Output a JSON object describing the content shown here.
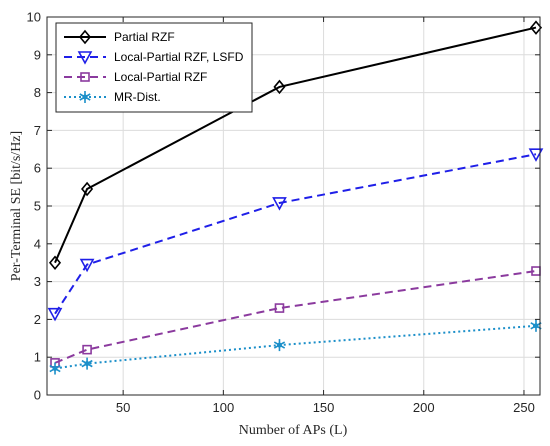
{
  "chart_data": {
    "type": "line",
    "title": "",
    "xlabel": "Number of APs (L)",
    "ylabel": "Per-Terminal SE [bit/s/Hz]",
    "xlim": [
      12,
      258
    ],
    "ylim": [
      0,
      10
    ],
    "x_ticks": [
      50,
      100,
      150,
      200,
      250
    ],
    "y_ticks": [
      0,
      1,
      2,
      3,
      4,
      5,
      6,
      7,
      8,
      9,
      10
    ],
    "grid": true,
    "legend_position": "top-left",
    "x": [
      16,
      32,
      128,
      256
    ],
    "series": [
      {
        "name": "Partial RZF",
        "values": [
          3.5,
          5.45,
          8.15,
          9.72
        ],
        "color": "#000000",
        "line": "solid",
        "marker": "diamond"
      },
      {
        "name": "Local-Partial RZF, LSFD",
        "values": [
          2.15,
          3.45,
          5.08,
          6.37
        ],
        "color": "#1f1fe8",
        "line": "dashed",
        "marker": "triangle-down"
      },
      {
        "name": "Local-Partial RZF",
        "values": [
          0.85,
          1.2,
          2.3,
          3.28
        ],
        "color": "#8b3a9e",
        "line": "dashed",
        "marker": "square"
      },
      {
        "name": "MR-Dist.",
        "values": [
          0.7,
          0.83,
          1.32,
          1.83
        ],
        "color": "#1b8fc9",
        "line": "dotted",
        "marker": "star"
      }
    ]
  }
}
